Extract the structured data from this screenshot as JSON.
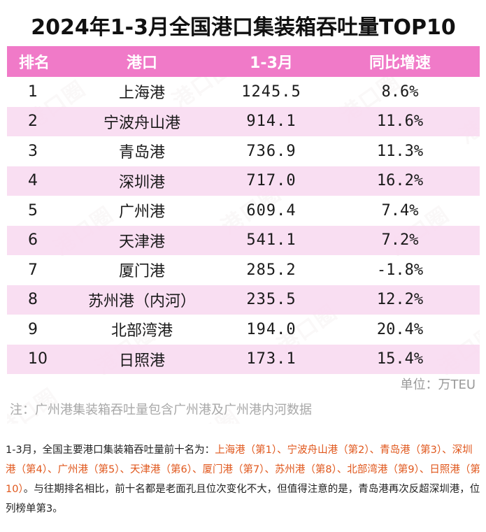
{
  "title": "2024年1-3月全国港口集装箱吞吐量TOP10",
  "table": {
    "headers": [
      "排名",
      "港口",
      "1-3月",
      "同比增速"
    ],
    "rows": [
      {
        "rank": "1",
        "port": "上海港",
        "volume": "1245.5",
        "growth": "8.6%",
        "trend": "up"
      },
      {
        "rank": "2",
        "port": "宁波舟山港",
        "volume": "914.1",
        "growth": "11.6%",
        "trend": "up"
      },
      {
        "rank": "3",
        "port": "青岛港",
        "volume": "736.9",
        "growth": "11.3%",
        "trend": "up"
      },
      {
        "rank": "4",
        "port": "深圳港",
        "volume": "717.0",
        "growth": "16.2%",
        "trend": "up"
      },
      {
        "rank": "5",
        "port": "广州港",
        "volume": "609.4",
        "growth": "7.4%",
        "trend": "up"
      },
      {
        "rank": "6",
        "port": "天津港",
        "volume": "541.1",
        "growth": "7.2%",
        "trend": "up"
      },
      {
        "rank": "7",
        "port": "厦门港",
        "volume": "285.2",
        "growth": "-1.8%",
        "trend": "down"
      },
      {
        "rank": "8",
        "port": "苏州港（内河）",
        "volume": "235.5",
        "growth": "12.2%",
        "trend": "up"
      },
      {
        "rank": "9",
        "port": "北部湾港",
        "volume": "194.0",
        "growth": "20.4%",
        "trend": "up"
      },
      {
        "rank": "10",
        "port": "日照港",
        "volume": "173.1",
        "growth": "15.4%",
        "trend": "up"
      }
    ]
  },
  "unit": "单位：万TEU",
  "note": "注：广州港集装箱吞吐量包含广州港及广州港内河数据",
  "watermark": "港口圈",
  "paragraph": {
    "intro": "1-3月，全国主要港口集装箱吞吐量前十名为：",
    "ranked": [
      "上海港（第1）",
      "宁波舟山港（第2）",
      "青岛港（第3）",
      "深圳港（第4）",
      "广州港（第5）",
      "天津港（第6）",
      "厦门港（第7）",
      "苏州港（第8）",
      "北部湾港（第9）",
      "日照港（第10）"
    ],
    "separator": "、",
    "conclusion": "。与往期排名相比，前十名都是老面孔且位次变化不大，但值得注意的是，青岛港再次反超深圳港，位列榜单第3。"
  },
  "colors": {
    "header_bg": "#f07ac8",
    "alt_row_bg": "#f8d8f0",
    "growth_up": "#e8211d",
    "growth_down": "#22a047",
    "highlight": "#e0571c"
  }
}
